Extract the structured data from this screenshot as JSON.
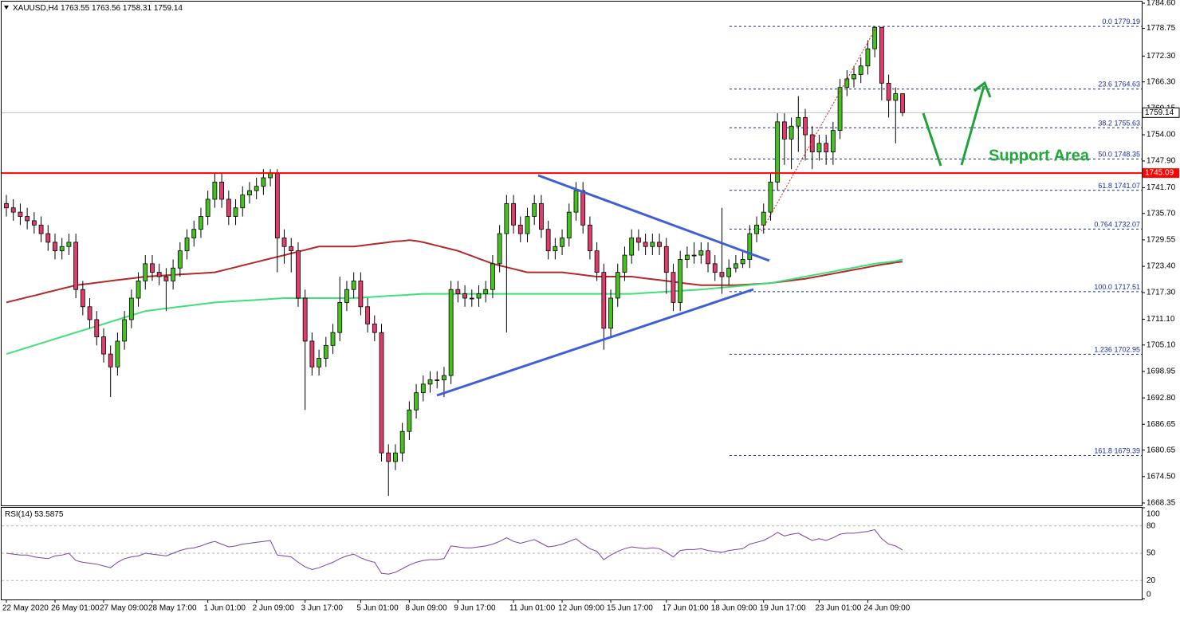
{
  "chart_data": {
    "type": "candlestick",
    "header": "XAUUSD,H4",
    "up_color": "#45c21f",
    "down_color": "#e03c6c",
    "categories": [
      "22 May 2020",
      null,
      null,
      null,
      null,
      null,
      null,
      "26 May 01:00",
      null,
      null,
      null,
      null,
      null,
      null,
      "27 May 09:00",
      null,
      null,
      null,
      null,
      null,
      null,
      "28 May 17:00",
      null,
      null,
      null,
      null,
      null,
      null,
      null,
      "1 Jun 01:00",
      null,
      null,
      null,
      null,
      null,
      null,
      "2 Jun 09:00",
      null,
      null,
      null,
      null,
      null,
      null,
      "3 Jun 17:00",
      null,
      null,
      null,
      null,
      null,
      null,
      null,
      "5 Jun 01:00",
      null,
      null,
      null,
      null,
      null,
      null,
      "8 Jun 09:00",
      null,
      null,
      null,
      null,
      null,
      null,
      "9 Jun 17:00",
      null,
      null,
      null,
      null,
      null,
      null,
      null,
      "11 Jun 01:00",
      null,
      null,
      null,
      null,
      null,
      null,
      "12 Jun 09:00",
      null,
      null,
      null,
      null,
      null,
      null,
      "15 Jun 17:00",
      null,
      null,
      null,
      null,
      null,
      null,
      null,
      "17 Jun 01:00",
      null,
      null,
      null,
      null,
      null,
      null,
      "18 Jun 09:00",
      null,
      null,
      null,
      null,
      null,
      null,
      "19 Jun 17:00",
      null,
      null,
      null,
      null,
      null,
      null,
      null,
      "23 Jun 01:00",
      null,
      null,
      null,
      null,
      null,
      null,
      "24 Jun 09:00",
      null,
      null,
      null,
      null,
      null
    ],
    "open": [
      1738,
      1737,
      1736,
      1735,
      1734,
      1733,
      1731,
      1729,
      1727,
      1728,
      1729,
      1718,
      1714,
      1711,
      1707,
      1703,
      1700,
      1706,
      1711,
      1716,
      1720,
      1724,
      1722,
      1721,
      1720,
      1723,
      1727,
      1730,
      1732,
      1735,
      1739,
      1743,
      1739,
      1735,
      1737,
      1740,
      1741,
      1742,
      1744,
      1745,
      1730,
      1728,
      1727,
      1716,
      1706,
      1700,
      1702,
      1705,
      1708,
      1715,
      1718,
      1720,
      1714,
      1710,
      1708,
      1680,
      1678,
      1680,
      1685,
      1690,
      1694,
      1696,
      1697,
      1697,
      1698,
      1718,
      1717,
      1716,
      1716,
      1717,
      1718,
      1724,
      1731,
      1738,
      1733,
      1731,
      1735,
      1738,
      1732,
      1727,
      1728,
      1730,
      1736,
      1741,
      1733,
      1727,
      1722,
      1709,
      1716,
      1722,
      1726,
      1730,
      1729,
      1728,
      1729,
      1728,
      1722,
      1715,
      1725,
      1726,
      1726,
      1727,
      1724,
      1722,
      1721,
      1723,
      1724,
      1725,
      1731,
      1733,
      1736,
      1743,
      1757,
      1753,
      1756,
      1758,
      1754,
      1750,
      1752,
      1750,
      1755,
      1765,
      1767,
      1768,
      1770,
      1774,
      1779,
      1766,
      1762,
      1763.55
    ],
    "high": [
      1740,
      1739,
      1738,
      1737,
      1736,
      1735,
      1733,
      1731,
      1730,
      1731,
      1731,
      1720,
      1716,
      1713,
      1709,
      1705,
      1708,
      1713,
      1718,
      1722,
      1726,
      1726,
      1724,
      1723,
      1725,
      1729,
      1732,
      1734,
      1737,
      1741,
      1745,
      1745,
      1741,
      1739,
      1742,
      1743,
      1744,
      1746,
      1746,
      1746,
      1732,
      1730,
      1729,
      1718,
      1708,
      1704,
      1707,
      1710,
      1721,
      1720,
      1722,
      1722,
      1716,
      1712,
      1710,
      1682,
      1682,
      1687,
      1692,
      1696,
      1698,
      1699,
      1699,
      1700,
      1720,
      1720,
      1719,
      1718,
      1719,
      1720,
      1726,
      1733,
      1740,
      1740,
      1735,
      1737,
      1740,
      1740,
      1734,
      1730,
      1732,
      1738,
      1743,
      1743,
      1735,
      1729,
      1724,
      1718,
      1724,
      1728,
      1732,
      1732,
      1731,
      1731,
      1731,
      1730,
      1724,
      1727,
      1728,
      1729,
      1729,
      1729,
      1726,
      1737,
      1725,
      1726,
      1727,
      1733,
      1735,
      1738,
      1745,
      1759,
      1759,
      1758,
      1763,
      1760,
      1756,
      1754,
      1754,
      1757,
      1767,
      1769,
      1770,
      1772,
      1776,
      1779.19,
      1779,
      1768,
      1765,
      1763.56
    ],
    "low": [
      1735,
      1734,
      1733,
      1732,
      1731,
      1729,
      1727,
      1725,
      1725,
      1726,
      1716,
      1712,
      1709,
      1705,
      1701,
      1693,
      1698,
      1704,
      1709,
      1714,
      1718,
      1720,
      1719,
      1713,
      1718,
      1721,
      1725,
      1728,
      1730,
      1733,
      1737,
      1737,
      1733,
      1733,
      1735,
      1738,
      1739,
      1740,
      1742,
      1722,
      1724,
      1722,
      1714,
      1690,
      1698,
      1698,
      1700,
      1703,
      1706,
      1713,
      1716,
      1712,
      1708,
      1706,
      1678,
      1670,
      1676,
      1678,
      1683,
      1688,
      1692,
      1694,
      1695,
      1693,
      1696,
      1715,
      1714,
      1714,
      1714,
      1715,
      1716,
      1722,
      1708,
      1731,
      1729,
      1729,
      1733,
      1730,
      1725,
      1725,
      1726,
      1728,
      1734,
      1731,
      1725,
      1720,
      1704,
      1707,
      1714,
      1720,
      1724,
      1727,
      1726,
      1726,
      1726,
      1717,
      1713,
      1713,
      1723,
      1724,
      1724,
      1722,
      1720,
      1717,
      1719,
      1722,
      1723,
      1723,
      1729,
      1731,
      1734,
      1741,
      1747,
      1746,
      1750,
      1748,
      1746,
      1748,
      1747,
      1747,
      1753,
      1763,
      1765,
      1766,
      1768,
      1772,
      1762,
      1758,
      1752,
      1758.31
    ],
    "close": [
      1737,
      1736,
      1735,
      1734,
      1733,
      1731,
      1729,
      1727,
      1728,
      1729,
      1718,
      1714,
      1711,
      1707,
      1703,
      1700,
      1706,
      1711,
      1716,
      1720,
      1724,
      1722,
      1721,
      1720,
      1723,
      1727,
      1730,
      1732,
      1735,
      1739,
      1743,
      1739,
      1735,
      1737,
      1740,
      1741,
      1742,
      1744,
      1745,
      1730,
      1728,
      1727,
      1716,
      1706,
      1700,
      1702,
      1705,
      1708,
      1715,
      1718,
      1720,
      1714,
      1710,
      1708,
      1680,
      1678,
      1680,
      1685,
      1690,
      1694,
      1696,
      1697,
      1697,
      1698,
      1718,
      1717,
      1716,
      1716,
      1717,
      1718,
      1724,
      1731,
      1738,
      1733,
      1731,
      1735,
      1738,
      1732,
      1727,
      1728,
      1730,
      1736,
      1741,
      1733,
      1727,
      1722,
      1709,
      1716,
      1722,
      1726,
      1730,
      1729,
      1728,
      1729,
      1728,
      1722,
      1715,
      1725,
      1726,
      1726,
      1727,
      1724,
      1722,
      1721,
      1723,
      1724,
      1725,
      1731,
      1733,
      1736,
      1743,
      1757,
      1753,
      1756,
      1758,
      1754,
      1750,
      1752,
      1750,
      1755,
      1765,
      1767,
      1768,
      1770,
      1774,
      1779,
      1766,
      1762,
      1763.55,
      1759.14
    ],
    "ma": [
      {
        "color": "#b22a2a",
        "values": [
          1715,
          1715.4,
          1715.8,
          1716.2,
          1716.6,
          1717,
          1717.4,
          1717.8,
          1718.2,
          1718.6,
          1719,
          1719.2,
          1719.4,
          1719.6,
          1719.8,
          1720,
          1720.2,
          1720.4,
          1720.6,
          1720.8,
          1721,
          1721.1,
          1721.2,
          1721.3,
          1721.4,
          1721.5,
          1721.6,
          1721.7,
          1721.8,
          1721.9,
          1722,
          1722.4,
          1722.8,
          1723.2,
          1723.6,
          1724,
          1724.4,
          1724.8,
          1725.2,
          1725.6,
          1726,
          1726.4,
          1726.8,
          1727.2,
          1727.6,
          1728,
          1728,
          1728,
          1728,
          1728,
          1728,
          1728.2,
          1728.4,
          1728.6,
          1728.8,
          1729,
          1729.2,
          1729.3,
          1729.5,
          1729.3,
          1729,
          1728.6,
          1728.2,
          1727.8,
          1727.4,
          1727,
          1726.4,
          1725.8,
          1725.2,
          1724.6,
          1724,
          1723.6,
          1723.2,
          1722.8,
          1722.4,
          1722,
          1722,
          1722,
          1722,
          1722,
          1722,
          1721.8,
          1721.6,
          1721.4,
          1721.2,
          1721,
          1721,
          1721,
          1721,
          1721,
          1721,
          1720.8,
          1720.6,
          1720.4,
          1720.2,
          1720,
          1719.8,
          1719.6,
          1719.4,
          1719.2,
          1719,
          1719,
          1719,
          1719,
          1719,
          1719,
          1719.1,
          1719.2,
          1719.3,
          1719.4,
          1719.5,
          1719.7,
          1719.9,
          1720.1,
          1720.3,
          1720.5,
          1720.8,
          1721.1,
          1721.4,
          1721.7,
          1722,
          1722.3,
          1722.6,
          1722.9,
          1723.2,
          1723.5,
          1723.8,
          1724,
          1724.3,
          1724.5
        ]
      },
      {
        "color": "#3fe07a",
        "values": [
          1703,
          1703.5,
          1704,
          1704.5,
          1705,
          1705.5,
          1706,
          1706.5,
          1707,
          1707.5,
          1708,
          1708.5,
          1709,
          1709.5,
          1710,
          1710.5,
          1711,
          1711.5,
          1712,
          1712.5,
          1713,
          1713.2,
          1713.4,
          1713.6,
          1713.8,
          1714,
          1714.2,
          1714.4,
          1714.6,
          1714.8,
          1715,
          1715.1,
          1715.2,
          1715.3,
          1715.4,
          1715.5,
          1715.6,
          1715.7,
          1715.8,
          1715.9,
          1716,
          1716,
          1716,
          1716,
          1716,
          1716,
          1716,
          1716,
          1716,
          1716,
          1716,
          1716.1,
          1716.2,
          1716.3,
          1716.4,
          1716.5,
          1716.6,
          1716.7,
          1716.8,
          1716.9,
          1717,
          1717,
          1717,
          1717,
          1717,
          1717,
          1717,
          1717,
          1717,
          1717,
          1717,
          1717,
          1717,
          1717,
          1717,
          1717,
          1717,
          1717,
          1717,
          1717,
          1717,
          1717,
          1717,
          1717,
          1717,
          1717,
          1717,
          1717,
          1717,
          1717,
          1717,
          1717.1,
          1717.2,
          1717.3,
          1717.4,
          1717.5,
          1717.6,
          1717.7,
          1717.8,
          1717.9,
          1718,
          1718.15,
          1718.3,
          1718.45,
          1718.6,
          1718.75,
          1718.9,
          1719.05,
          1719.2,
          1719.35,
          1719.5,
          1719.8,
          1720.1,
          1720.4,
          1720.7,
          1721,
          1721.3,
          1721.6,
          1721.9,
          1722.2,
          1722.5,
          1722.8,
          1723.1,
          1723.4,
          1723.7,
          1724,
          1724.2,
          1724.4,
          1724.6,
          1725
        ]
      }
    ],
    "ylim": [
      1668.35,
      1784.6
    ],
    "yticks": [
      {
        "value": 1784.6,
        "label": "1784.60"
      },
      1778.75,
      {
        "value": 1772.3,
        "label": "1772.30"
      },
      {
        "value": 1766.3,
        "label": "1766.30"
      },
      1760.15,
      {
        "value": 1754,
        "label": "1754.00"
      },
      {
        "value": 1747.9,
        "label": "1747.90"
      },
      {
        "value": 1741.7,
        "label": "1741.70"
      },
      {
        "value": 1735.7,
        "label": "1735.70"
      },
      1729.55,
      {
        "value": 1723.4,
        "label": "1723.40"
      },
      {
        "value": 1717.3,
        "label": "1717.30"
      },
      {
        "value": 1711.1,
        "label": "1711.10"
      },
      {
        "value": 1705.1,
        "label": "1705.10"
      },
      1698.95,
      {
        "value": 1692.8,
        "label": "1692.80"
      },
      1686.65,
      1680.65,
      {
        "value": 1674.5,
        "label": "1674.50"
      },
      1668.35
    ],
    "level": {
      "value": 1745.09,
      "color": "#ff0000"
    },
    "fib_color": "#1c2c9c",
    "fib": [
      {
        "ratio": "0.0",
        "value": 1779.19
      },
      {
        "ratio": "23.6",
        "value": 1764.63
      },
      {
        "ratio": "38.2",
        "value": 1755.63
      },
      {
        "ratio": "50.0",
        "value": 1748.35
      },
      {
        "ratio": "61.8",
        "value": 1741.07
      },
      {
        "ratio": "0.764",
        "value": 1732.07
      },
      {
        "ratio": "100.0",
        "value": 1717.51
      },
      {
        "ratio": "1.236",
        "value": 1702.95
      },
      {
        "ratio": "161.8",
        "value": 1679.39
      }
    ],
    "annotation": "Support Area",
    "rsi": {
      "label": "RSI(14)",
      "color": "#7a3fa8",
      "ylim": [
        0,
        100
      ],
      "yticks": [
        0,
        20,
        50,
        80,
        100
      ],
      "values": [
        50,
        49,
        48,
        48,
        46,
        45,
        44,
        47,
        48,
        50,
        42,
        40,
        39,
        38,
        36,
        34,
        40,
        44,
        46,
        47,
        50,
        49,
        48,
        47,
        50,
        53,
        55,
        56,
        58,
        61,
        63,
        60,
        57,
        58,
        60,
        61,
        62,
        63,
        64,
        48,
        47,
        46,
        40,
        35,
        32,
        34,
        37,
        40,
        44,
        47,
        49,
        45,
        42,
        40,
        28,
        27,
        29,
        33,
        37,
        40,
        42,
        43,
        43,
        44,
        58,
        57,
        56,
        56,
        57,
        58,
        60,
        63,
        67,
        63,
        61,
        63,
        65,
        61,
        57,
        58,
        60,
        63,
        66,
        60,
        55,
        52,
        43,
        48,
        52,
        55,
        57,
        56,
        55,
        56,
        55,
        51,
        46,
        53,
        54,
        54,
        55,
        53,
        52,
        51,
        53,
        54,
        55,
        60,
        62,
        64,
        68,
        73,
        69,
        71,
        72,
        68,
        64,
        66,
        64,
        67,
        71,
        72,
        72,
        73,
        74,
        76,
        66,
        60,
        58,
        53.5875
      ]
    }
  }
}
